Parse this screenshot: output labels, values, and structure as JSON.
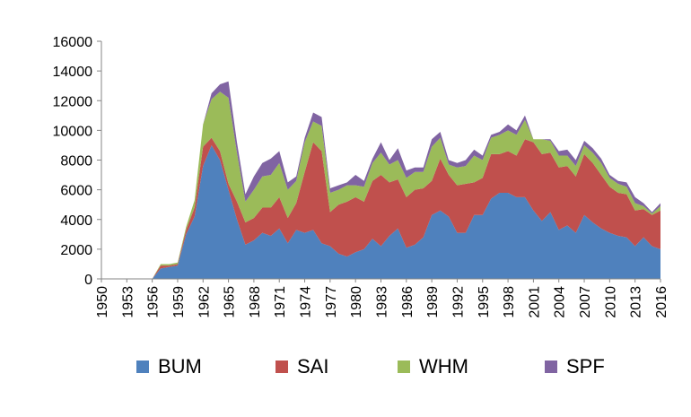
{
  "chart_data": {
    "type": "area",
    "stacked": true,
    "title": "",
    "xlabel": "",
    "ylabel": "",
    "ylim": [
      0,
      16000
    ],
    "yticks": [
      0,
      2000,
      4000,
      6000,
      8000,
      10000,
      12000,
      14000,
      16000
    ],
    "ytick_labels": [
      "0",
      "2000",
      "4000",
      "6000",
      "8000",
      "10000",
      "12000",
      "14000",
      "16000"
    ],
    "x": [
      1950,
      1951,
      1952,
      1953,
      1954,
      1955,
      1956,
      1957,
      1958,
      1959,
      1960,
      1961,
      1962,
      1963,
      1964,
      1965,
      1966,
      1967,
      1968,
      1969,
      1970,
      1971,
      1972,
      1973,
      1974,
      1975,
      1976,
      1977,
      1978,
      1979,
      1980,
      1981,
      1982,
      1983,
      1984,
      1985,
      1986,
      1987,
      1988,
      1989,
      1990,
      1991,
      1992,
      1993,
      1994,
      1995,
      1996,
      1997,
      1998,
      1999,
      2000,
      2001,
      2002,
      2003,
      2004,
      2005,
      2006,
      2007,
      2008,
      2009,
      2010,
      2011,
      2012,
      2013,
      2014,
      2015,
      2016
    ],
    "xtick_labels": [
      "1950",
      "1953",
      "1956",
      "1959",
      "1962",
      "1965",
      "1968",
      "1971",
      "1974",
      "1977",
      "1980",
      "1983",
      "1986",
      "1989",
      "1992",
      "1995",
      "1998",
      "2001",
      "2004",
      "2007",
      "2010",
      "2013",
      "2016"
    ],
    "legend_position": "bottom",
    "grid": false,
    "series": [
      {
        "name": "BUM",
        "color": "#4F81BD",
        "values": [
          0,
          0,
          0,
          0,
          0,
          0,
          0,
          700,
          800,
          900,
          3000,
          4200,
          7600,
          9000,
          8000,
          6000,
          4000,
          2300,
          2600,
          3100,
          2900,
          3400,
          2400,
          3300,
          3100,
          3300,
          2400,
          2200,
          1700,
          1500,
          1800,
          2000,
          2700,
          2200,
          2900,
          3400,
          2100,
          2300,
          2800,
          4300,
          4600,
          4200,
          3100,
          3100,
          4300,
          4300,
          5400,
          5800,
          5800,
          5500,
          5500,
          4600,
          3900,
          4500,
          3300,
          3600,
          3100,
          4300,
          3800,
          3400,
          3100,
          2900,
          2800,
          2200,
          2800,
          2200,
          2000
        ]
      },
      {
        "name": "SAI",
        "color": "#C0504D",
        "values": [
          0,
          0,
          0,
          0,
          0,
          0,
          0,
          200,
          100,
          100,
          300,
          600,
          1300,
          500,
          600,
          400,
          1200,
          1500,
          1500,
          1700,
          1900,
          2100,
          1700,
          1800,
          4100,
          5900,
          6200,
          2300,
          3300,
          3700,
          3700,
          3200,
          3900,
          4800,
          3600,
          3300,
          3400,
          3700,
          3300,
          2300,
          3500,
          2800,
          3200,
          3300,
          2200,
          2500,
          3000,
          2600,
          2800,
          2800,
          3900,
          4600,
          4500,
          4000,
          4200,
          4000,
          3800,
          4100,
          4000,
          3600,
          3100,
          2900,
          2900,
          2400,
          1900,
          2100,
          2600
        ]
      },
      {
        "name": "WHM",
        "color": "#9BBB59",
        "values": [
          0,
          0,
          0,
          0,
          0,
          0,
          0,
          100,
          100,
          100,
          200,
          500,
          1500,
          2600,
          4000,
          5800,
          3300,
          1400,
          1900,
          2100,
          2200,
          2300,
          1900,
          1500,
          2000,
          1400,
          1700,
          1300,
          1000,
          1100,
          800,
          1000,
          1200,
          1500,
          1200,
          1300,
          1300,
          1200,
          1100,
          2300,
          1400,
          700,
          1200,
          1200,
          1800,
          1200,
          1100,
          1300,
          1400,
          1400,
          1300,
          200,
          1000,
          800,
          800,
          700,
          700,
          600,
          700,
          800,
          600,
          600,
          500,
          500,
          200,
          100,
          300
        ]
      },
      {
        "name": "SPF",
        "color": "#8064A2",
        "values": [
          0,
          0,
          0,
          0,
          0,
          0,
          0,
          0,
          0,
          0,
          0,
          0,
          0,
          400,
          500,
          1100,
          700,
          500,
          900,
          900,
          1100,
          800,
          500,
          300,
          300,
          600,
          600,
          300,
          300,
          200,
          700,
          400,
          300,
          700,
          300,
          800,
          500,
          300,
          300,
          500,
          400,
          300,
          300,
          400,
          400,
          300,
          200,
          200,
          400,
          300,
          300,
          0,
          0,
          100,
          300,
          400,
          400,
          300,
          300,
          300,
          200,
          200,
          300,
          400,
          200,
          100,
          200
        ]
      }
    ]
  }
}
